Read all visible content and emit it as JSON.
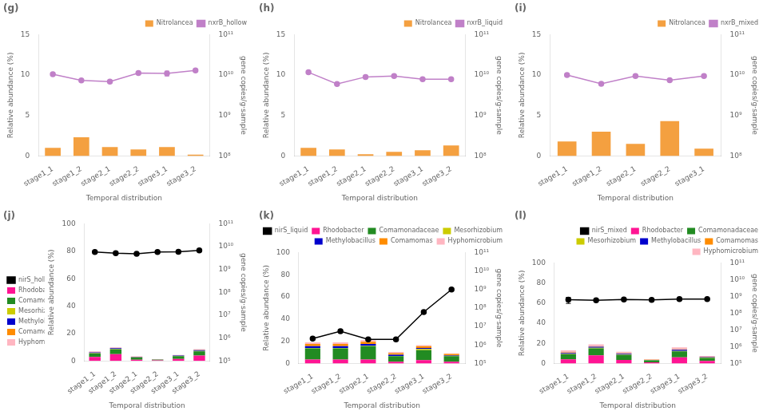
{
  "chart_data": [
    {
      "type": "bar",
      "title": "(g)",
      "categories": [
        "stage1_1",
        "stage1_2",
        "stage2_1",
        "stage2_2",
        "stage3_1",
        "stage3_2"
      ],
      "xlabel": "Temporal distribution",
      "ylabel": "Relative abundance (%)",
      "y2label": "gene copies/g·sample",
      "ylim": [
        0,
        15
      ],
      "yticks": [
        0,
        5,
        10,
        15
      ],
      "y2lim": [
        100000000.0,
        100000000000.0
      ],
      "y2ticks": [
        {
          "value": 100000000.0,
          "label": "10⁸"
        },
        {
          "value": 1000000000.0,
          "label": "10⁹"
        },
        {
          "value": 10000000000.0,
          "label": "10¹⁰"
        },
        {
          "value": 100000000000.0,
          "label": "10¹¹"
        }
      ],
      "log": "y2",
      "grid": false,
      "legend": "upper right",
      "series": [
        {
          "name": "Nitrolancea",
          "type": "bar",
          "color": "#F4A040",
          "values": [
            1.0,
            2.3,
            1.1,
            0.8,
            1.1,
            0.15
          ]
        },
        {
          "name": "nxrB_hollow",
          "type": "line",
          "axis": "y2",
          "color": "#C080C8",
          "marker": "circle",
          "values": [
            10500000000.0,
            7400000000.0,
            6900000000.0,
            11200000000.0,
            11000000000.0,
            13000000000.0
          ],
          "errors": [
            200000000.0,
            150000000.0,
            100000000.0,
            150000000.0,
            1500000000.0,
            200000000.0
          ]
        }
      ]
    },
    {
      "type": "bar",
      "title": "(h)",
      "categories": [
        "stage1_1",
        "stage1_2",
        "stage2_1",
        "stage2_2",
        "stage3_1",
        "stage3_2"
      ],
      "xlabel": "Temporal distribution",
      "ylabel": "Relative abundance (%)",
      "y2label": "gene copies/g·sample",
      "ylim": [
        0,
        15
      ],
      "yticks": [
        0,
        5,
        10,
        15
      ],
      "y2lim": [
        100000000.0,
        100000000000.0
      ],
      "y2ticks": [
        {
          "value": 100000000.0,
          "label": "10⁸"
        },
        {
          "value": 1000000000.0,
          "label": "10⁹"
        },
        {
          "value": 10000000000.0,
          "label": "10¹⁰"
        },
        {
          "value": 100000000000.0,
          "label": "10¹¹"
        }
      ],
      "log": "y2",
      "grid": false,
      "legend": "upper right",
      "series": [
        {
          "name": "Nitrolancea",
          "type": "bar",
          "color": "#F4A040",
          "values": [
            1.0,
            0.8,
            0.2,
            0.5,
            0.7,
            1.3
          ]
        },
        {
          "name": "nxrB_liquid",
          "type": "line",
          "axis": "y2",
          "color": "#C080C8",
          "marker": "circle",
          "values": [
            11700000000.0,
            6000000000.0,
            9000000000.0,
            9500000000.0,
            7900000000.0,
            7900000000.0
          ],
          "errors": [
            200000000.0,
            200000000.0,
            200000000.0,
            150000000.0,
            150000000.0,
            150000000.0
          ]
        }
      ]
    },
    {
      "type": "bar",
      "title": "(i)",
      "categories": [
        "stage1_1",
        "stage1_2",
        "stage2_1",
        "stage2_2",
        "stage3_1"
      ],
      "xlabel": "Temporal distribution",
      "ylabel": "Relative abundance (%)",
      "y2label": "gene copies/g·sample",
      "ylim": [
        0,
        15
      ],
      "yticks": [
        0,
        5,
        10,
        15
      ],
      "y2lim": [
        100000000.0,
        100000000000.0
      ],
      "y2ticks": [
        {
          "value": 100000000.0,
          "label": "10⁸"
        },
        {
          "value": 1000000000.0,
          "label": "10⁹"
        },
        {
          "value": 10000000000.0,
          "label": "10¹⁰"
        },
        {
          "value": 100000000000.0,
          "label": "10¹¹"
        }
      ],
      "log": "y2",
      "grid": false,
      "legend": "upper right",
      "series": [
        {
          "name": "Nitrolancea",
          "type": "bar",
          "color": "#F4A040",
          "values": [
            1.8,
            3.0,
            1.5,
            4.3,
            0.9
          ]
        },
        {
          "name": "nxrB_mixed",
          "type": "line",
          "axis": "y2",
          "color": "#C080C8",
          "marker": "circle",
          "values": [
            10000000000.0,
            6100000000.0,
            9500000000.0,
            7500000000.0,
            9500000000.0
          ],
          "errors": [
            200000000.0,
            100000000.0,
            300000000.0,
            100000000.0,
            100000000.0
          ]
        }
      ]
    },
    {
      "type": "bar",
      "title": "(j)",
      "categories": [
        "stage1_1",
        "stage1_2",
        "stage2_1",
        "stage2_2",
        "stage3_1",
        "stage3_2"
      ],
      "xlabel": "Temporal distribution",
      "ylabel": "Relative abundance (%)",
      "y2label": "gene copies/g·sample",
      "ylim": [
        0,
        100
      ],
      "yticks": [
        0,
        20,
        40,
        60,
        80,
        100
      ],
      "y2lim": [
        100000.0,
        100000000000.0
      ],
      "y2ticks": [
        {
          "value": 100000.0,
          "label": "10⁵"
        },
        {
          "value": 1000000.0,
          "label": "10⁶"
        },
        {
          "value": 10000000.0,
          "label": "10⁷"
        },
        {
          "value": 100000000.0,
          "label": "10⁸"
        },
        {
          "value": 1000000000.0,
          "label": "10⁹"
        },
        {
          "value": 10000000000.0,
          "label": "10¹⁰"
        },
        {
          "value": 100000000000.0,
          "label": "10¹¹"
        }
      ],
      "log": "y2",
      "grid": false,
      "stacked": true,
      "legend": "center left",
      "series": [
        {
          "name": "nirS_hollow",
          "type": "line",
          "axis": "y2",
          "color": "#000000",
          "marker": "circle",
          "values": [
            5900000000.0,
            5200000000.0,
            4900000000.0,
            5800000000.0,
            6000000000.0,
            6900000000.0
          ],
          "errors": [
            300000000.0,
            500000000.0,
            200000000.0,
            200000000.0,
            200000000.0,
            200000000.0
          ]
        },
        {
          "name": "Rhodobacter",
          "type": "bar",
          "color": "#FF1493",
          "values": [
            3.0,
            5.0,
            1.0,
            0.5,
            1.5,
            4.0
          ]
        },
        {
          "name": "Comamonadaceae",
          "type": "bar",
          "color": "#228B22",
          "values": [
            2.5,
            3.5,
            1.5,
            0.5,
            2.0,
            3.0
          ]
        },
        {
          "name": "Mesorhizobium",
          "type": "bar",
          "color": "#CCCC00",
          "values": [
            0.3,
            0.3,
            0.2,
            0.1,
            0.2,
            0.4
          ]
        },
        {
          "name": "Methylobacillus",
          "type": "bar",
          "color": "#0000CD",
          "values": [
            0.5,
            0.5,
            0.3,
            0.1,
            0.3,
            0.5
          ]
        },
        {
          "name": "Comamomas",
          "type": "bar",
          "color": "#FF8C00",
          "values": [
            0.2,
            0.2,
            0.1,
            0.05,
            0.1,
            0.2
          ]
        },
        {
          "name": "Hyphomicrobium",
          "type": "bar",
          "color": "#FFB6C1",
          "values": [
            0.5,
            0.5,
            0.3,
            0.1,
            0.3,
            0.5
          ]
        }
      ]
    },
    {
      "type": "bar",
      "title": "(k)",
      "categories": [
        "stage1_1",
        "stage1_2",
        "stage2_1",
        "stage2_2",
        "stage3_1",
        "stage3_2"
      ],
      "xlabel": "Temporal distribution",
      "ylabel": "Relative abundance (%)",
      "y2label": "gene copies/g·sample",
      "ylim": [
        0,
        100
      ],
      "yticks": [
        0,
        20,
        40,
        60,
        80,
        100
      ],
      "y2lim": [
        100000.0,
        100000000000.0
      ],
      "y2ticks": [
        {
          "value": 100000.0,
          "label": "10⁵"
        },
        {
          "value": 1000000.0,
          "label": "10⁶"
        },
        {
          "value": 10000000.0,
          "label": "10⁷"
        },
        {
          "value": 100000000.0,
          "label": "10⁸"
        },
        {
          "value": 1000000000.0,
          "label": "10⁹"
        },
        {
          "value": 10000000000.0,
          "label": "10¹⁰"
        },
        {
          "value": 100000000000.0,
          "label": "10¹¹"
        }
      ],
      "log": "y2",
      "grid": false,
      "stacked": true,
      "legend": "upper right",
      "series": [
        {
          "name": "nirS_liquid",
          "type": "line",
          "axis": "y2",
          "color": "#000000",
          "marker": "circle",
          "values": [
            2200000.0,
            5500000.0,
            2000000.0,
            2000000.0,
            60000000.0,
            1000000000.0
          ],
          "errors": [
            300000.0,
            1000000.0,
            200000.0,
            200000.0,
            5000000.0,
            100000000.0
          ]
        },
        {
          "name": "Rhodobacter",
          "type": "bar",
          "color": "#FF1493",
          "values": [
            3.5,
            3.5,
            3.5,
            1.5,
            3.0,
            1.5
          ]
        },
        {
          "name": "Comamonadaceae",
          "type": "bar",
          "color": "#228B22",
          "values": [
            10.0,
            10.0,
            12.0,
            5.0,
            9.0,
            5.0
          ]
        },
        {
          "name": "Mesorhizobium",
          "type": "bar",
          "color": "#CCCC00",
          "values": [
            0.5,
            0.5,
            0.5,
            0.3,
            1.0,
            0.5
          ]
        },
        {
          "name": "Methylobacillus",
          "type": "bar",
          "color": "#0000CD",
          "values": [
            1.5,
            1.5,
            1.5,
            1.0,
            1.0,
            0.5
          ]
        },
        {
          "name": "Comamomas",
          "type": "bar",
          "color": "#FF8C00",
          "values": [
            2.0,
            2.0,
            2.0,
            1.5,
            1.5,
            1.0
          ]
        },
        {
          "name": "Hyphomicrobium",
          "type": "bar",
          "color": "#FFB6C1",
          "values": [
            1.5,
            1.5,
            1.5,
            1.0,
            1.0,
            0.5
          ]
        }
      ]
    },
    {
      "type": "bar",
      "title": "(l)",
      "categories": [
        "stage1_1",
        "stage1_2",
        "stage2_1",
        "stage2_2",
        "stage3_1",
        "stage3_2"
      ],
      "xlabel": "Temporal distribution",
      "ylabel": "Relative abundance (%)",
      "y2label": "gene copies/g·sample",
      "ylim": [
        0,
        100
      ],
      "yticks": [
        0,
        20,
        40,
        60,
        80,
        100
      ],
      "y2lim": [
        100000.0,
        100000000000.0
      ],
      "y2ticks": [
        {
          "value": 100000.0,
          "label": "10⁵"
        },
        {
          "value": 1000000.0,
          "label": "10⁶"
        },
        {
          "value": 10000000.0,
          "label": "10⁷"
        },
        {
          "value": 100000000.0,
          "label": "10⁸"
        },
        {
          "value": 1000000000.0,
          "label": "10⁹"
        },
        {
          "value": 10000000000.0,
          "label": "10¹⁰"
        },
        {
          "value": 100000000000.0,
          "label": "10¹¹"
        }
      ],
      "log": "y2",
      "grid": false,
      "stacked": true,
      "legend": "upper right",
      "series": [
        {
          "name": "nirS_mixed",
          "type": "line",
          "axis": "y2",
          "color": "#000000",
          "marker": "circle",
          "values": [
            630000000.0,
            580000000.0,
            650000000.0,
            620000000.0,
            690000000.0,
            700000000.0
          ],
          "errors": [
            250000000.0,
            10000000.0,
            10000000.0,
            10000000.0,
            80000000.0,
            10000000.0
          ]
        },
        {
          "name": "Rhodobacter",
          "type": "bar",
          "color": "#FF1493",
          "values": [
            4.0,
            8.0,
            3.5,
            1.0,
            6.0,
            2.5
          ]
        },
        {
          "name": "Comamonadaceae",
          "type": "bar",
          "color": "#228B22",
          "values": [
            5.0,
            7.0,
            5.0,
            2.0,
            6.0,
            3.0
          ]
        },
        {
          "name": "Mesorhizobium",
          "type": "bar",
          "color": "#CCCC00",
          "values": [
            0.5,
            0.5,
            0.4,
            0.2,
            0.5,
            0.3
          ]
        },
        {
          "name": "Methylobacillus",
          "type": "bar",
          "color": "#0000CD",
          "values": [
            1.0,
            1.0,
            0.8,
            0.3,
            1.0,
            0.5
          ]
        },
        {
          "name": "Comamomas",
          "type": "bar",
          "color": "#FF8C00",
          "values": [
            0.5,
            0.5,
            0.4,
            0.2,
            0.5,
            0.3
          ]
        },
        {
          "name": "Hyphomicrobium",
          "type": "bar",
          "color": "#FFB6C1",
          "values": [
            2.0,
            2.0,
            1.5,
            0.5,
            2.0,
            0.8
          ]
        }
      ]
    }
  ]
}
